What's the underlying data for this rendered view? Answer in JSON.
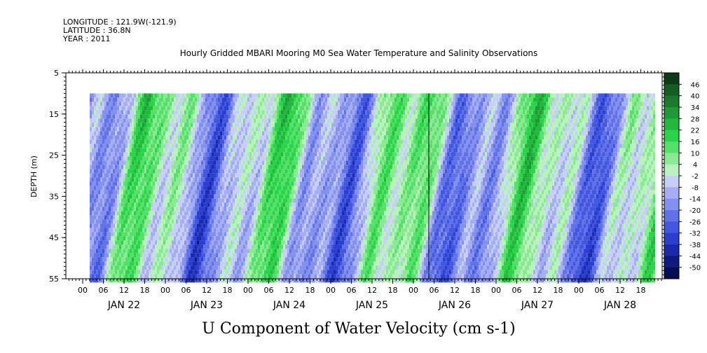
{
  "meta": {
    "longitude": "LONGITUDE : 121.9W(-121.9)",
    "latitude": "LATITUDE : 36.8N",
    "year": "YEAR : 2011"
  },
  "chart_data": {
    "type": "heatmap",
    "title": "Hourly Gridded MBARI Mooring M0 Sea Water Temperature and Salinity Observations",
    "xlabel": "U Component of Water Velocity (cm s-1)",
    "ylabel": "DEPTH (m)",
    "ylim": [
      5,
      55
    ],
    "y_inverted": true,
    "y_ticks": [
      5,
      15,
      25,
      35,
      45,
      55
    ],
    "x_hour_ticks": [
      "00",
      "06",
      "12",
      "18",
      "00",
      "06",
      "12",
      "18",
      "00",
      "06",
      "12",
      "18",
      "00",
      "06",
      "12",
      "18",
      "00",
      "06",
      "12",
      "18",
      "00",
      "06",
      "12",
      "18",
      "00",
      "06",
      "12",
      "18"
    ],
    "x_day_labels": [
      "JAN 22",
      "JAN 23",
      "JAN 24",
      "JAN 25",
      "JAN 26",
      "JAN 27",
      "JAN 28"
    ],
    "data_depth_range_m": [
      10,
      55
    ],
    "colorbar": {
      "levels": [
        "46",
        "40",
        "34",
        "28",
        "22",
        "16",
        "10",
        "4",
        "-2",
        "-8",
        "-14",
        "-20",
        "-26",
        "-32",
        "-38",
        "-44",
        "-50"
      ],
      "range": [
        -50,
        50
      ],
      "colors": [
        "#0d3b17",
        "#155d22",
        "#1a7a2b",
        "#1f9935",
        "#22b83d",
        "#2ad448",
        "#55e06a",
        "#8aea92",
        "#b8f2bc",
        "#c7cef8",
        "#a5aef3",
        "#8490ee",
        "#6172e8",
        "#4157e0",
        "#2a3ed0",
        "#1a2aab",
        "#0f1a80",
        "#070d55"
      ]
    }
  }
}
